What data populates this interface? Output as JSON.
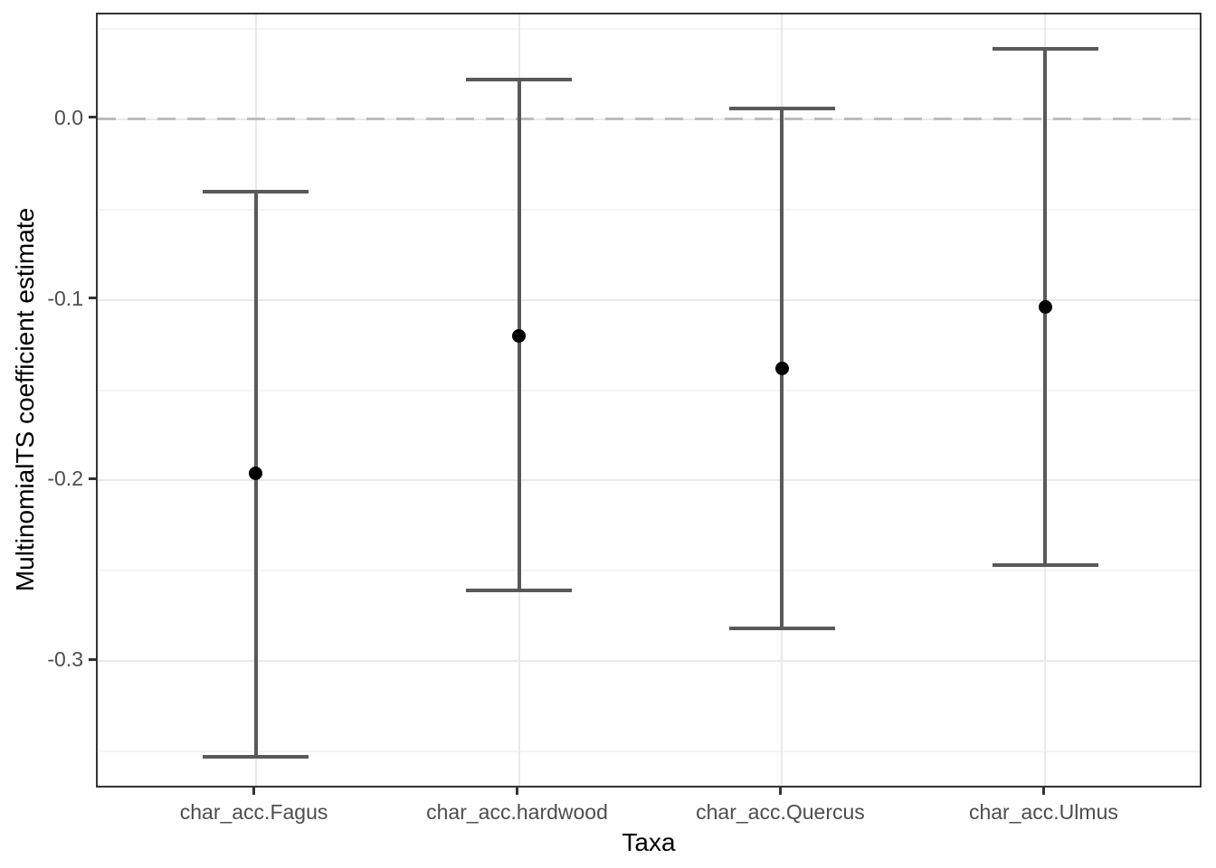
{
  "chart_data": {
    "type": "scatter",
    "subtype": "point-estimates-with-errorbars",
    "title": "",
    "xlabel": "Taxa",
    "ylabel": "MultinomialTS coefficient estimate",
    "categories": [
      "char_acc.Fagus",
      "char_acc.hardwood",
      "char_acc.Quercus",
      "char_acc.Ulmus"
    ],
    "series": [
      {
        "name": "coefficient estimate",
        "values": [
          -0.196,
          -0.12,
          -0.138,
          -0.104
        ]
      }
    ],
    "error_low": [
      -0.353,
      -0.261,
      -0.282,
      -0.247
    ],
    "error_high": [
      -0.04,
      0.022,
      0.006,
      0.039
    ],
    "ylim": [
      -0.371,
      0.058
    ],
    "y_major_ticks": [
      0.0,
      -0.1,
      -0.2,
      -0.3
    ],
    "y_tick_labels": [
      "0.0",
      "-0.1",
      "-0.2",
      "-0.3"
    ],
    "y_minor_ticks": [
      0.05,
      -0.05,
      -0.15,
      -0.25,
      -0.35
    ],
    "reference_line": {
      "y": 0,
      "style": "dashed"
    },
    "grid": true,
    "legend": "none",
    "colors": {
      "point": "#000000",
      "errorbar": "#595959",
      "reference_line": "#bdbdbd",
      "grid_major": "#e9e9e9",
      "grid_minor": "#f4f4f4",
      "panel_border": "#333333",
      "tick_label": "#4d4d4d",
      "axis_title": "#000000"
    }
  }
}
